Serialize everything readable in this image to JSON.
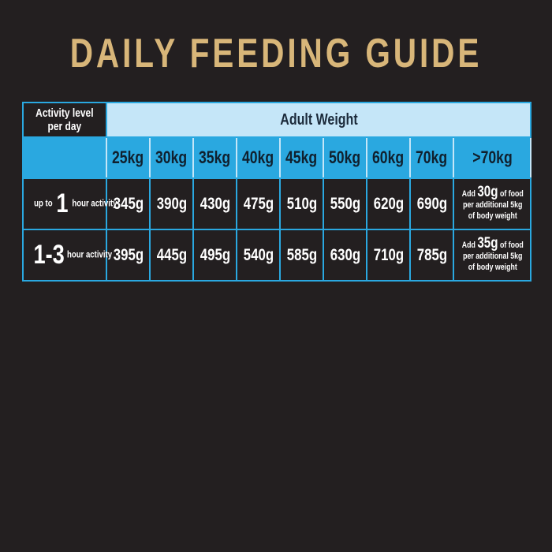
{
  "title": "DAILY FEEDING GUIDE",
  "table": {
    "activity_header": [
      "Activity level",
      "per day"
    ],
    "weight_header": "Adult Weight",
    "weights": [
      "25kg",
      "30kg",
      "35kg",
      "40kg",
      "45kg",
      "50kg",
      "60kg",
      "70kg",
      ">70kg"
    ],
    "rows": [
      {
        "prefix": "up to",
        "number": "1",
        "suffix": "hour activity",
        "values": [
          "345g",
          "390g",
          "430g",
          "475g",
          "510g",
          "550g",
          "620g",
          "690g"
        ],
        "note": {
          "pre": "Add",
          "amount": "30g",
          "post": "of food",
          "line2": "per additional 5kg",
          "line3": "of body weight"
        }
      },
      {
        "prefix": "",
        "number": "1-3",
        "suffix": "hour activity",
        "values": [
          "395g",
          "445g",
          "495g",
          "540g",
          "585g",
          "630g",
          "710g",
          "785g"
        ],
        "note": {
          "pre": "Add",
          "amount": "35g",
          "post": "of food",
          "line2": "per additional 5kg",
          "line3": "of body weight"
        }
      }
    ]
  },
  "colors": {
    "background": "#231f20",
    "title": "#d8b679",
    "blue": "#2aa8e0",
    "light_blue": "#c5e6f8"
  }
}
